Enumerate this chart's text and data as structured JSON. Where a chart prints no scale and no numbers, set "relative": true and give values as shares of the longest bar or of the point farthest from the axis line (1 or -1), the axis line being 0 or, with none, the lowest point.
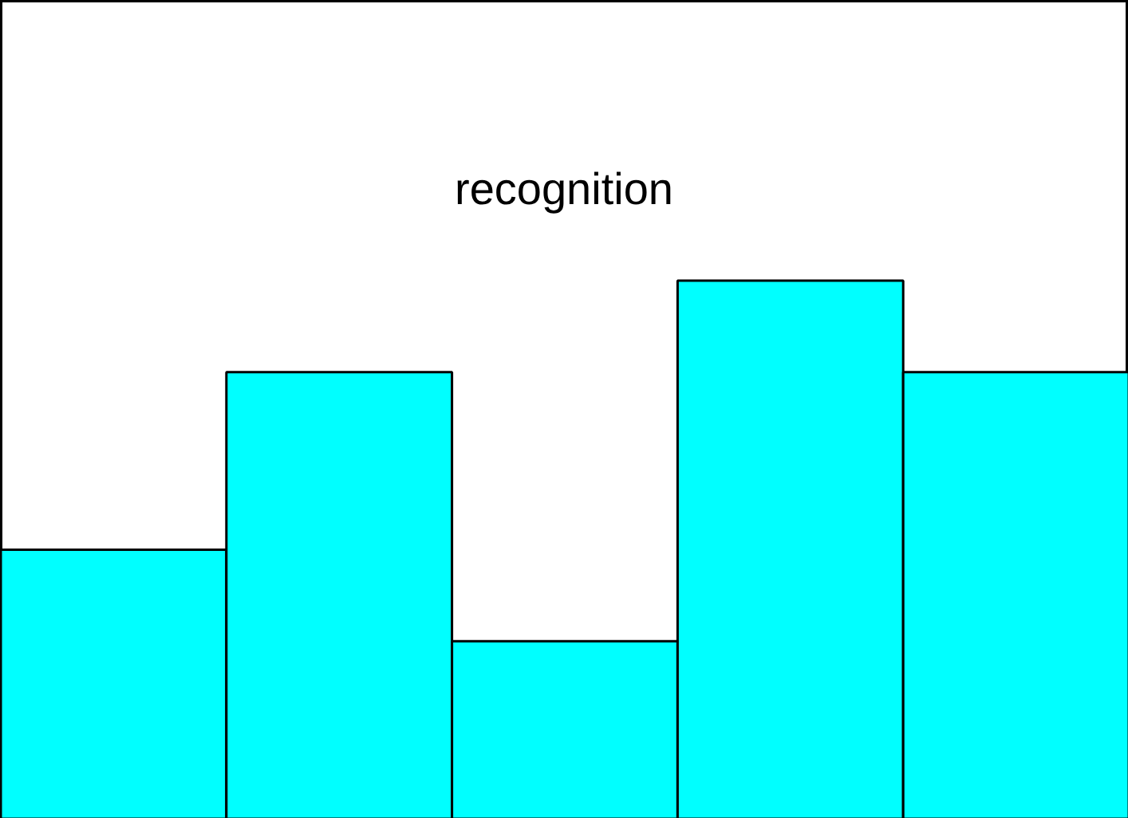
{
  "chart_data": {
    "type": "bar",
    "title": "recognition",
    "relative": true,
    "categories": [
      null,
      null,
      null,
      null,
      null
    ],
    "values": [
      0.5,
      0.83,
      0.33,
      1,
      0.83
    ],
    "color": "#00ffff",
    "grid": false
  }
}
